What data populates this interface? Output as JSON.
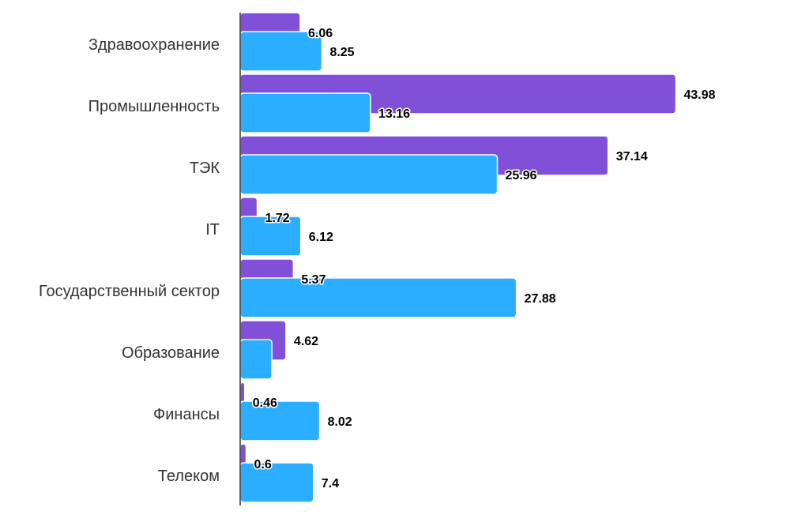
{
  "chart_data": {
    "type": "bar",
    "orientation": "horizontal",
    "categories": [
      "Здравоохранение",
      "Промышленность",
      "ТЭК",
      "IT",
      "Государственный сектор",
      "Образование",
      "Финансы",
      "Телеком"
    ],
    "series": [
      {
        "color": "#8050d8",
        "values": [
          6.06,
          43.98,
          37.14,
          1.72,
          5.37,
          4.62,
          0.46,
          0.6
        ],
        "labels": [
          "6.06",
          "43.98",
          "37.14",
          "1.72",
          "5.37",
          "4.62",
          "0.46",
          "0.6"
        ]
      },
      {
        "color": "#2baeff",
        "values": [
          8.25,
          13.16,
          25.96,
          6.12,
          27.88,
          3.2,
          8.02,
          7.4
        ],
        "labels": [
          "8.25",
          "13.16",
          "25.96",
          "6.12",
          "27.88",
          "",
          "8.02",
          "7.4"
        ]
      }
    ],
    "xlim": [
      0,
      44.5
    ],
    "grid": false,
    "legend": "none",
    "title": "",
    "xlabel": "",
    "ylabel": ""
  }
}
